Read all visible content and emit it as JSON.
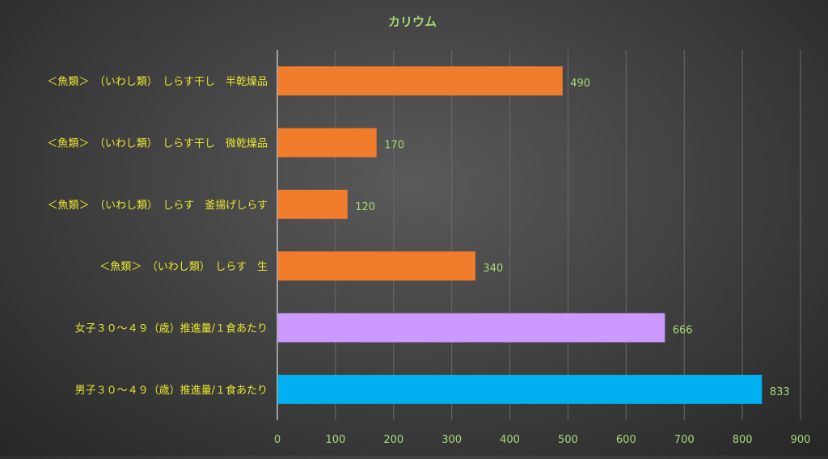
{
  "chart_data": {
    "type": "bar",
    "orientation": "horizontal",
    "title": "カリウム",
    "xlabel": "",
    "ylabel": "",
    "xlim": [
      0,
      900
    ],
    "ticks": [
      0,
      100,
      200,
      300,
      400,
      500,
      600,
      700,
      800,
      900
    ],
    "grid": true,
    "legend": "none",
    "categories": [
      "＜魚類＞　（いわし類）　しらす干し　半乾燥品",
      "＜魚類＞　（いわし類）　しらす干し　微乾燥品",
      "＜魚類＞　（いわし類）　しらす　釜揚げしらす",
      "＜魚類＞　（いわし類）　しらす　生",
      "女子３０～４９（歳）推進量/１食あたり",
      "男子３０～４９（歳）推進量/１食あたり"
    ],
    "values": [
      490,
      170,
      120,
      340,
      666,
      833
    ],
    "bar_colors": [
      "#F07C2C",
      "#F07C2C",
      "#F07C2C",
      "#F07C2C",
      "#CC99FF",
      "#00B0F0"
    ]
  },
  "colors": {
    "title": "#A8D878",
    "category_label": "#E8E830",
    "tick_label": "#A8D878",
    "data_label": "#A8D878",
    "gridline": "#6a6a6a",
    "axis": "#bdbdbd"
  }
}
